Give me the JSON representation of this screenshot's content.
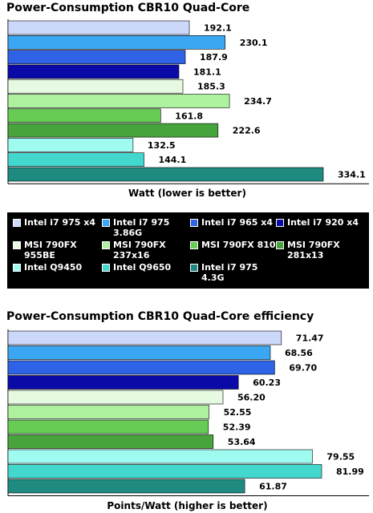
{
  "chart_data": [
    {
      "type": "bar",
      "orientation": "horizontal",
      "title": "Power-Consumption CBR10 Quad-Core",
      "xlabel": "Watt (lower is better)",
      "xlim": [
        0,
        334.1
      ],
      "grid": false,
      "legend_position": "between charts",
      "categories": [
        "Intel i7 975 x4",
        "Intel i7 975 3.86G",
        "Intel i7 965 x4",
        "Intel i7 920 x4",
        "MSI 790FX 955BE",
        "MSI 790FX 237x16",
        "MSI 790FX 810",
        "MSI 790FX 281x13",
        "Intel Q9450",
        "Intel Q9650",
        "Intel i7 975 4.3G"
      ],
      "values": [
        192.1,
        230.1,
        187.9,
        181.1,
        185.3,
        234.7,
        161.8,
        222.6,
        132.5,
        144.1,
        334.1
      ],
      "value_labels": [
        "192.1",
        "230.1",
        "187.9",
        "181.1",
        "185.3",
        "234.7",
        "161.8",
        "222.6",
        "132.5",
        "144.1",
        "334.1"
      ]
    },
    {
      "type": "bar",
      "orientation": "horizontal",
      "title": "Power-Consumption CBR10 Quad-Core efficiency",
      "xlabel": "Points/Watt (higher is better)",
      "xlim": [
        0,
        81.99
      ],
      "grid": false,
      "categories": [
        "Intel i7 975 x4",
        "Intel i7 975 3.86G",
        "Intel i7 965 x4",
        "Intel i7 920 x4",
        "MSI 790FX 955BE",
        "MSI 790FX 237x16",
        "MSI 790FX 810",
        "MSI 790FX 281x13",
        "Intel Q9450",
        "Intel Q9650",
        "Intel i7 975 4.3G"
      ],
      "values": [
        71.47,
        68.56,
        69.7,
        60.23,
        56.2,
        52.55,
        52.39,
        53.64,
        79.55,
        81.99,
        61.87
      ],
      "value_labels": [
        "71.47",
        "68.56",
        "69.70",
        "60.23",
        "56.20",
        "52.55",
        "52.39",
        "53.64",
        "79.55",
        "81.99",
        "61.87"
      ]
    }
  ],
  "legend": [
    {
      "label": "Intel i7 975 x4",
      "color": "#ccd8fa"
    },
    {
      "label": "Intel i7 975\n3.86G",
      "color": "#3ba6f2"
    },
    {
      "label": "Intel i7 965 x4",
      "color": "#2f63e6"
    },
    {
      "label": "Intel i7 920 x4",
      "color": "#0a0aa8"
    },
    {
      "label": "MSI 790FX\n955BE",
      "color": "#e5fae0"
    },
    {
      "label": "MSI 790FX\n237x16",
      "color": "#aef2a0"
    },
    {
      "label": "MSI 790FX 810",
      "color": "#66cc55"
    },
    {
      "label": "MSI 790FX\n281x13",
      "color": "#47a33b"
    },
    {
      "label": "Intel Q9450",
      "color": "#9ffaf0"
    },
    {
      "label": "Intel Q9650",
      "color": "#42d8cd"
    },
    {
      "label": "Intel i7 975\n4.3G",
      "color": "#1e8a80"
    }
  ]
}
